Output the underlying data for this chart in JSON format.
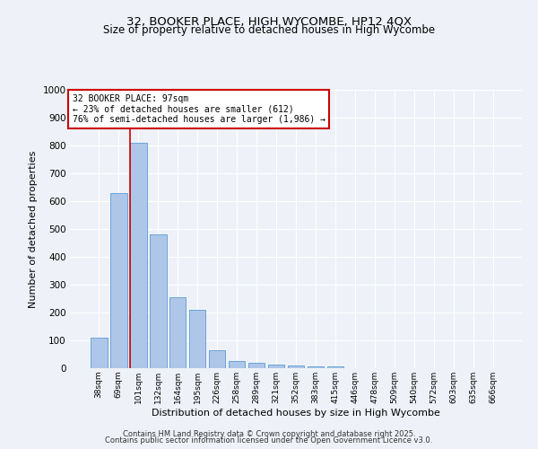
{
  "title1": "32, BOOKER PLACE, HIGH WYCOMBE, HP12 4QX",
  "title2": "Size of property relative to detached houses in High Wycombe",
  "xlabel": "Distribution of detached houses by size in High Wycombe",
  "ylabel": "Number of detached properties",
  "categories": [
    "38sqm",
    "69sqm",
    "101sqm",
    "132sqm",
    "164sqm",
    "195sqm",
    "226sqm",
    "258sqm",
    "289sqm",
    "321sqm",
    "352sqm",
    "383sqm",
    "415sqm",
    "446sqm",
    "478sqm",
    "509sqm",
    "540sqm",
    "572sqm",
    "603sqm",
    "635sqm",
    "666sqm"
  ],
  "values": [
    110,
    630,
    810,
    480,
    255,
    210,
    65,
    25,
    18,
    12,
    10,
    8,
    8,
    0,
    0,
    0,
    0,
    0,
    0,
    0,
    0
  ],
  "bar_color": "#aec6e8",
  "bar_edge_color": "#5b9bd5",
  "red_line_x": 1.57,
  "property_label": "32 BOOKER PLACE: 97sqm",
  "annotation_line1": "← 23% of detached houses are smaller (612)",
  "annotation_line2": "76% of semi-detached houses are larger (1,986) →",
  "annotation_box_facecolor": "#ffffff",
  "annotation_border_color": "#cc0000",
  "red_line_color": "#cc0000",
  "ylim": [
    0,
    1000
  ],
  "yticks": [
    0,
    100,
    200,
    300,
    400,
    500,
    600,
    700,
    800,
    900,
    1000
  ],
  "bg_color": "#eef2f8",
  "grid_color": "#ffffff",
  "footer1": "Contains HM Land Registry data © Crown copyright and database right 2025.",
  "footer2": "Contains public sector information licensed under the Open Government Licence v3.0."
}
